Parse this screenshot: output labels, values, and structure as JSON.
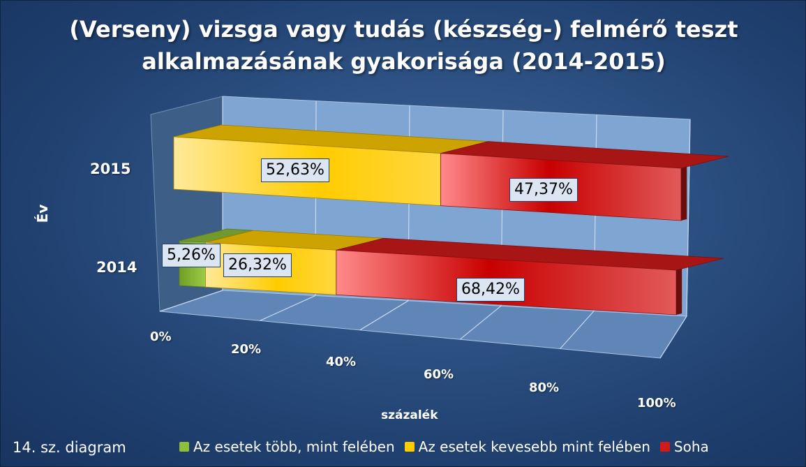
{
  "caption": "14. sz. diagram",
  "chart_data": {
    "type": "bar",
    "orientation": "horizontal",
    "stacked": "100%",
    "style": "3d",
    "title": [
      "(Verseny) vizsga vagy tudás (készség-) felmérő teszt",
      "alkalmazásának gyakorisága (2014-2015)"
    ],
    "ylabel": "Év",
    "xlabel": "százalék",
    "categories": [
      "2015",
      "2014"
    ],
    "x_ticks": [
      "0%",
      "20%",
      "40%",
      "60%",
      "80%",
      "100%"
    ],
    "xlim": [
      0,
      100
    ],
    "series": [
      {
        "name": "Az esetek több, mint felében",
        "color": "#8fbf3a",
        "values": [
          0,
          5.26
        ],
        "labels": [
          "",
          "5,26%"
        ]
      },
      {
        "name": "Az esetek kevesebb mint felében",
        "color": "#ffcc00",
        "values": [
          52.63,
          26.32
        ],
        "labels": [
          "52,63%",
          "26,32%"
        ]
      },
      {
        "name": "Soha",
        "color": "#d11a1a",
        "values": [
          47.37,
          68.42
        ],
        "labels": [
          "47,37%",
          "68,42%"
        ]
      }
    ],
    "legend_position": "bottom",
    "grid": true
  }
}
